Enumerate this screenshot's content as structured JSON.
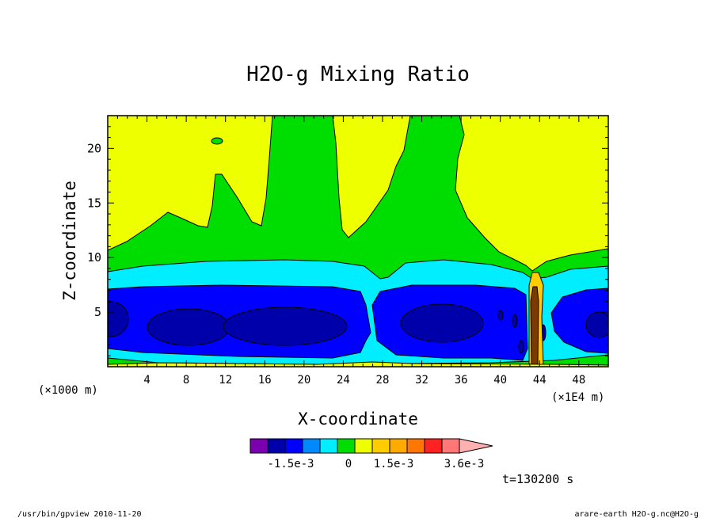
{
  "chart_data": {
    "type": "heatmap",
    "title": "H2O-g Mixing Ratio",
    "xlabel": "X-coordinate",
    "ylabel": "Z-coordinate",
    "x_unit": "(×1000 m)",
    "y_unit": "(×1E4 m)",
    "x_ticks": [
      "4",
      "8",
      "12",
      "16",
      "20",
      "24",
      "28",
      "32",
      "36",
      "40",
      "44",
      "48"
    ],
    "y_ticks": [
      "5",
      "10",
      "15",
      "20"
    ],
    "xlim": [
      0,
      51
    ],
    "ylim": [
      0,
      23
    ],
    "colorbar": {
      "labels": [
        "-1.5e-3",
        "0",
        "1.5e-3",
        "3.6e-3"
      ],
      "colors": [
        "#7a00b0",
        "#0000aa",
        "#0000ff",
        "#0088ff",
        "#00eeff",
        "#00dd00",
        "#eeff00",
        "#ffcc00",
        "#ffaa00",
        "#ff7700",
        "#ff2222",
        "#ff7777",
        "#ffb0b0"
      ]
    },
    "time_label": "t=130200 s"
  },
  "footer": {
    "left": "/usr/bin/gpview   2010-11-20",
    "right": "arare-earth_H2O-g.nc@H2O-g"
  }
}
